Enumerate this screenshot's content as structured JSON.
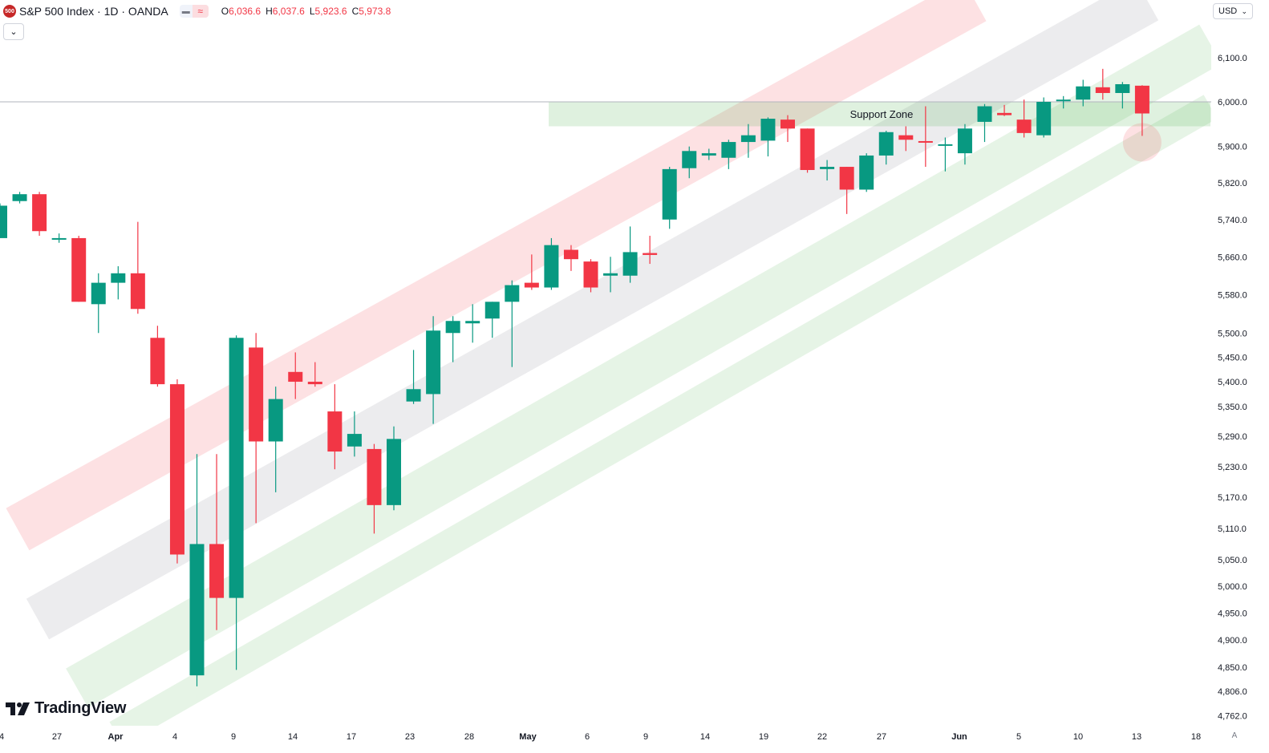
{
  "header": {
    "symbol_badge": "500",
    "title": "S&P 500 Index · 1D · OANDA",
    "ohlc": {
      "o_label": "O",
      "o_value": "6,036.6",
      "h_label": "H",
      "h_value": "6,037.6",
      "l_label": "L",
      "l_value": "5,923.6",
      "c_label": "C",
      "c_value": "5,973.8"
    }
  },
  "currency_button": "USD",
  "logo_text": "TradingView",
  "auto_scale_label": "A",
  "colors": {
    "up": "#089981",
    "down": "#f23645",
    "red_channel": "#f23645",
    "gray_channel": "#9598a1",
    "green_channel": "#4caf50",
    "axis_text": "#131722"
  },
  "chart_data": {
    "type": "candlestick",
    "y_scale": "log",
    "ylim": [
      4740,
      6310
    ],
    "x_tick_labels": [
      "4",
      "27",
      "Apr",
      "4",
      "9",
      "14",
      "17",
      "23",
      "28",
      "May",
      "6",
      "9",
      "14",
      "19",
      "22",
      "27",
      "Jun",
      "5",
      "10",
      "13",
      "18"
    ],
    "y_tick_labels": [
      "6,100.0",
      "6,000.0",
      "5,900.0",
      "5,820.0",
      "5,740.0",
      "5,660.0",
      "5,580.0",
      "5,500.0",
      "5,450.0",
      "5,400.0",
      "5,350.0",
      "5,290.0",
      "5,230.0",
      "5,170.0",
      "5,110.0",
      "5,050.0",
      "5,000.0",
      "4,950.0",
      "4,900.0",
      "4,850.0",
      "4,806.0",
      "4,762.0"
    ],
    "y_ticks": [
      6100,
      6000,
      5900,
      5820,
      5740,
      5660,
      5580,
      5500,
      5450,
      5400,
      5350,
      5290,
      5230,
      5170,
      5110,
      5050,
      5000,
      4950,
      4900,
      4850,
      4806,
      4762
    ],
    "reference_line": 6000,
    "candles": [
      {
        "o": 5700,
        "h": 5775,
        "l": 5700,
        "c": 5770
      },
      {
        "o": 5780,
        "h": 5800,
        "l": 5775,
        "c": 5795
      },
      {
        "o": 5795,
        "h": 5800,
        "l": 5705,
        "c": 5715
      },
      {
        "o": 5698,
        "h": 5710,
        "l": 5690,
        "c": 5700
      },
      {
        "o": 5700,
        "h": 5705,
        "l": 5565,
        "c": 5565
      },
      {
        "o": 5560,
        "h": 5625,
        "l": 5500,
        "c": 5605
      },
      {
        "o": 5605,
        "h": 5640,
        "l": 5570,
        "c": 5625
      },
      {
        "o": 5625,
        "h": 5735,
        "l": 5540,
        "c": 5550
      },
      {
        "o": 5490,
        "h": 5515,
        "l": 5390,
        "c": 5395
      },
      {
        "o": 5395,
        "h": 5405,
        "l": 5043,
        "c": 5060
      },
      {
        "o": 4835,
        "h": 5255,
        "l": 4815,
        "c": 5080
      },
      {
        "o": 5080,
        "h": 5255,
        "l": 4918,
        "c": 4978
      },
      {
        "o": 4978,
        "h": 5495,
        "l": 4845,
        "c": 5490
      },
      {
        "o": 5470,
        "h": 5500,
        "l": 5120,
        "c": 5280
      },
      {
        "o": 5280,
        "h": 5390,
        "l": 5180,
        "c": 5365
      },
      {
        "o": 5420,
        "h": 5460,
        "l": 5365,
        "c": 5400
      },
      {
        "o": 5400,
        "h": 5440,
        "l": 5390,
        "c": 5395
      },
      {
        "o": 5340,
        "h": 5395,
        "l": 5225,
        "c": 5260
      },
      {
        "o": 5270,
        "h": 5340,
        "l": 5250,
        "c": 5295
      },
      {
        "o": 5265,
        "h": 5275,
        "l": 5100,
        "c": 5155
      },
      {
        "o": 5155,
        "h": 5310,
        "l": 5145,
        "c": 5285
      },
      {
        "o": 5360,
        "h": 5465,
        "l": 5355,
        "c": 5385
      },
      {
        "o": 5375,
        "h": 5535,
        "l": 5315,
        "c": 5505
      },
      {
        "o": 5500,
        "h": 5535,
        "l": 5440,
        "c": 5525
      },
      {
        "o": 5520,
        "h": 5560,
        "l": 5480,
        "c": 5525
      },
      {
        "o": 5530,
        "h": 5565,
        "l": 5490,
        "c": 5565
      },
      {
        "o": 5565,
        "h": 5610,
        "l": 5430,
        "c": 5600
      },
      {
        "o": 5605,
        "h": 5665,
        "l": 5590,
        "c": 5595
      },
      {
        "o": 5595,
        "h": 5700,
        "l": 5590,
        "c": 5685
      },
      {
        "o": 5675,
        "h": 5685,
        "l": 5630,
        "c": 5655
      },
      {
        "o": 5650,
        "h": 5655,
        "l": 5585,
        "c": 5595
      },
      {
        "o": 5620,
        "h": 5660,
        "l": 5585,
        "c": 5625
      },
      {
        "o": 5620,
        "h": 5725,
        "l": 5605,
        "c": 5670
      },
      {
        "o": 5668,
        "h": 5705,
        "l": 5645,
        "c": 5664
      },
      {
        "o": 5740,
        "h": 5855,
        "l": 5720,
        "c": 5850
      },
      {
        "o": 5852,
        "h": 5900,
        "l": 5830,
        "c": 5890
      },
      {
        "o": 5880,
        "h": 5895,
        "l": 5870,
        "c": 5885
      },
      {
        "o": 5875,
        "h": 5915,
        "l": 5850,
        "c": 5910
      },
      {
        "o": 5910,
        "h": 5950,
        "l": 5875,
        "c": 5925
      },
      {
        "o": 5913,
        "h": 5965,
        "l": 5878,
        "c": 5962
      },
      {
        "o": 5960,
        "h": 5970,
        "l": 5910,
        "c": 5940
      },
      {
        "o": 5940,
        "h": 5940,
        "l": 5842,
        "c": 5848
      },
      {
        "o": 5850,
        "h": 5870,
        "l": 5825,
        "c": 5855
      },
      {
        "o": 5855,
        "h": 5855,
        "l": 5752,
        "c": 5805
      },
      {
        "o": 5805,
        "h": 5885,
        "l": 5800,
        "c": 5880
      },
      {
        "o": 5880,
        "h": 5935,
        "l": 5860,
        "c": 5932
      },
      {
        "o": 5925,
        "h": 5945,
        "l": 5890,
        "c": 5915
      },
      {
        "o": 5912,
        "h": 5990,
        "l": 5855,
        "c": 5910
      },
      {
        "o": 5905,
        "h": 5920,
        "l": 5845,
        "c": 5905
      },
      {
        "o": 5885,
        "h": 5950,
        "l": 5860,
        "c": 5940
      },
      {
        "o": 5955,
        "h": 5995,
        "l": 5910,
        "c": 5990
      },
      {
        "o": 5975,
        "h": 5993,
        "l": 5968,
        "c": 5970
      },
      {
        "o": 5960,
        "h": 6005,
        "l": 5920,
        "c": 5930
      },
      {
        "o": 5925,
        "h": 6010,
        "l": 5920,
        "c": 6000
      },
      {
        "o": 6003,
        "h": 6013,
        "l": 5985,
        "c": 6005
      },
      {
        "o": 6005,
        "h": 6050,
        "l": 5990,
        "c": 6035
      },
      {
        "o": 6033,
        "h": 6075,
        "l": 6005,
        "c": 6020
      },
      {
        "o": 6020,
        "h": 6045,
        "l": 5985,
        "c": 6040
      },
      {
        "o": 6036.6,
        "h": 6037.6,
        "l": 5923.6,
        "c": 5973.8
      }
    ],
    "annotations": [
      {
        "text": "Support Zone",
        "type": "zone",
        "y_from": 5945,
        "y_to": 6000
      }
    ]
  }
}
